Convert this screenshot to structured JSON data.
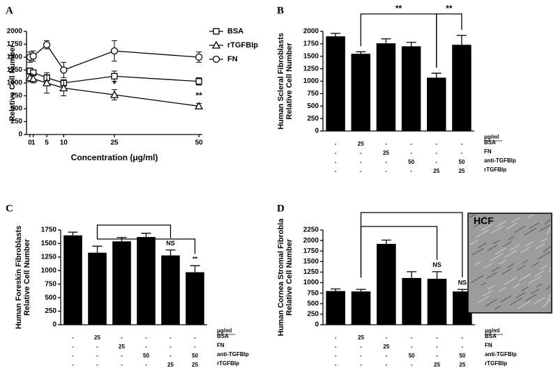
{
  "chart_data": [
    {
      "type": "line",
      "panel_label": "A",
      "xlabel": "Concentration (μg/ml)",
      "ylabel": [
        "Relative Cell Number"
      ],
      "x": [
        0,
        1,
        5,
        10,
        25,
        50
      ],
      "xlim": [
        -1,
        51
      ],
      "xticks": [
        0,
        1,
        5,
        10,
        25,
        50
      ],
      "ylim": [
        0,
        2000
      ],
      "yticks": [
        0,
        250,
        500,
        750,
        1000,
        1250,
        1500,
        1750,
        2000
      ],
      "series": [
        {
          "name": "BSA",
          "marker": "square",
          "color": "#000000",
          "values": [
            1230,
            1200,
            1100,
            1000,
            1130,
            1030
          ],
          "errors": [
            60,
            50,
            60,
            60,
            100,
            70
          ]
        },
        {
          "name": "rTGFBIp",
          "marker": "triangle",
          "color": "#000000",
          "values": [
            1100,
            1080,
            1000,
            900,
            770,
            550
          ],
          "errors": [
            80,
            80,
            200,
            150,
            100,
            50
          ]
        },
        {
          "name": "FN",
          "marker": "circle",
          "color": "#000000",
          "values": [
            1500,
            1520,
            1740,
            1250,
            1620,
            1500
          ],
          "errors": [
            100,
            100,
            80,
            150,
            200,
            100
          ]
        }
      ],
      "annotations": [
        {
          "x": 25,
          "text": "*"
        },
        {
          "x": 50,
          "text": "**"
        }
      ]
    },
    {
      "type": "bar",
      "panel_label": "B",
      "ylabel": [
        "Human Scleral Fibroblasts",
        "Relative Cell Number"
      ],
      "color": "#000000",
      "values": [
        1900,
        1550,
        1760,
        1700,
        1070,
        1730
      ],
      "errors": [
        60,
        40,
        90,
        80,
        90,
        190
      ],
      "ylim": [
        0,
        2000
      ],
      "yticks": [
        0,
        250,
        500,
        750,
        1000,
        1250,
        1500,
        1750,
        2000
      ],
      "brackets": [
        {
          "from": 1,
          "to": 4,
          "label": "**"
        },
        {
          "from": 4,
          "to": 5,
          "label": "**"
        }
      ],
      "treatments": {
        "unit": "μg/ml",
        "rows": [
          {
            "label": "BSA",
            "cells": [
              "-",
              "25",
              "-",
              "-",
              "-",
              "-"
            ]
          },
          {
            "label": "FN",
            "cells": [
              "-",
              "-",
              "25",
              "-",
              "-",
              "-"
            ]
          },
          {
            "label": "anti-TGFBIp",
            "cells": [
              "-",
              "-",
              "-",
              "50",
              "-",
              "50"
            ]
          },
          {
            "label": "rTGFBIp",
            "cells": [
              "-",
              "-",
              "-",
              "-",
              "25",
              "25"
            ]
          }
        ]
      }
    },
    {
      "type": "bar",
      "panel_label": "C",
      "ylabel": [
        "Human Foreskin Fibroblasts",
        "Relative Cell Number"
      ],
      "color": "#000000",
      "values": [
        1650,
        1330,
        1540,
        1620,
        1280,
        970
      ],
      "errors": [
        60,
        120,
        70,
        70,
        100,
        120
      ],
      "ylim": [
        0,
        1750
      ],
      "yticks": [
        0,
        250,
        500,
        750,
        1000,
        1250,
        1500,
        1750
      ],
      "brackets": [
        {
          "from": 1,
          "to": 4
        },
        {
          "from": 1,
          "to": 5
        }
      ],
      "bar_annotations": [
        null,
        null,
        null,
        null,
        "NS",
        "**"
      ],
      "treatments": {
        "unit": "μg/ml",
        "rows": [
          {
            "label": "BSA",
            "cells": [
              "-",
              "25",
              "-",
              "-",
              "-",
              "-"
            ]
          },
          {
            "label": "FN",
            "cells": [
              "-",
              "-",
              "25",
              "-",
              "-",
              "-"
            ]
          },
          {
            "label": "anti-TGFBIp",
            "cells": [
              "-",
              "-",
              "-",
              "50",
              "-",
              "50"
            ]
          },
          {
            "label": "rTGFBIp",
            "cells": [
              "-",
              "-",
              "-",
              "-",
              "25",
              "25"
            ]
          }
        ]
      }
    },
    {
      "type": "bar",
      "panel_label": "D",
      "ylabel": [
        "Human Cornea Stromal Fibrobla",
        "Relative Cell Number"
      ],
      "color": "#000000",
      "values": [
        800,
        790,
        1920,
        1110,
        1090,
        790
      ],
      "errors": [
        50,
        50,
        90,
        150,
        170,
        50
      ],
      "ylim": [
        0,
        2250
      ],
      "yticks": [
        0,
        250,
        500,
        750,
        1000,
        1250,
        1500,
        1750,
        2000,
        2250
      ],
      "brackets": [
        {
          "from": 1,
          "to": 5
        },
        {
          "from": 1,
          "to": 4
        }
      ],
      "bar_annotations": [
        null,
        null,
        null,
        null,
        "NS",
        "NS"
      ],
      "inset_label": "HCF",
      "treatments": {
        "unit": "μg/ml",
        "rows": [
          {
            "label": "BSA",
            "cells": [
              "-",
              "25",
              "-",
              "-",
              "-",
              "-"
            ]
          },
          {
            "label": "FN",
            "cells": [
              "-",
              "-",
              "25",
              "-",
              "-",
              "-"
            ]
          },
          {
            "label": "anti-TGFBIp",
            "cells": [
              "-",
              "-",
              "-",
              "50",
              "-",
              "50"
            ]
          },
          {
            "label": "rTGFBIp",
            "cells": [
              "-",
              "-",
              "-",
              "-",
              "25",
              "25"
            ]
          }
        ]
      }
    }
  ]
}
